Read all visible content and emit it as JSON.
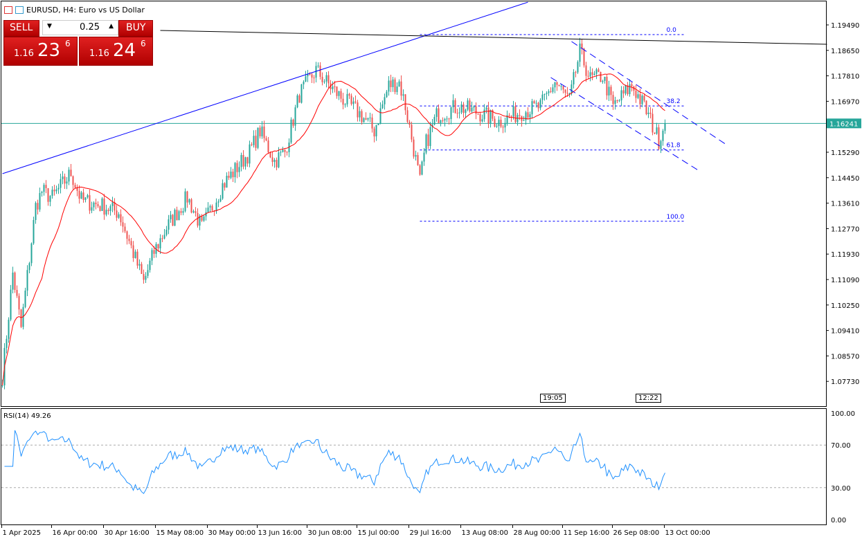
{
  "header": {
    "title": "EURUSD, H4:  Euro vs US Dollar"
  },
  "trade": {
    "sell": "SELL",
    "buy": "BUY",
    "volume": "0.25",
    "sell_prefix": "1.16",
    "sell_big": "23",
    "sell_sup": "6",
    "buy_prefix": "1.16",
    "buy_big": "24",
    "buy_sup": "6"
  },
  "markers": {
    "left": "19:05",
    "right": "12:22"
  },
  "chart_data": {
    "type": "candlestick",
    "symbol": "EURUSD",
    "timeframe": "H4",
    "price_ticks": [
      "1.19490",
      "1.18650",
      "1.17810",
      "1.16970",
      "1.15290",
      "1.14450",
      "1.13610",
      "1.12770",
      "1.11930",
      "1.11090",
      "1.10250",
      "1.09410",
      "1.08570",
      "1.07730"
    ],
    "ylim": [
      1.0739,
      1.2062
    ],
    "current_price": "1.16241",
    "bars": 320,
    "close_path": [
      [
        0,
        1.079
      ],
      [
        5,
        1.113
      ],
      [
        9,
        1.095
      ],
      [
        16,
        1.135
      ],
      [
        19,
        1.14
      ],
      [
        24,
        1.138
      ],
      [
        33,
        1.146
      ],
      [
        38,
        1.137
      ],
      [
        49,
        1.135
      ],
      [
        56,
        1.133
      ],
      [
        68,
        1.11
      ],
      [
        73,
        1.12
      ],
      [
        79,
        1.128
      ],
      [
        89,
        1.138
      ],
      [
        96,
        1.128
      ],
      [
        106,
        1.142
      ],
      [
        119,
        1.153
      ],
      [
        124,
        1.16
      ],
      [
        131,
        1.15
      ],
      [
        136,
        1.153
      ],
      [
        143,
        1.172
      ],
      [
        151,
        1.18
      ],
      [
        156,
        1.176
      ],
      [
        163,
        1.171
      ],
      [
        173,
        1.165
      ],
      [
        179,
        1.16
      ],
      [
        186,
        1.175
      ],
      [
        191,
        1.176
      ],
      [
        194,
        1.168
      ],
      [
        198,
        1.154
      ],
      [
        201,
        1.143
      ],
      [
        204,
        1.156
      ],
      [
        209,
        1.165
      ],
      [
        219,
        1.168
      ],
      [
        229,
        1.166
      ],
      [
        239,
        1.163
      ],
      [
        249,
        1.166
      ],
      [
        259,
        1.168
      ],
      [
        266,
        1.176
      ],
      [
        273,
        1.17
      ],
      [
        278,
        1.186
      ],
      [
        283,
        1.177
      ],
      [
        289,
        1.178
      ],
      [
        294,
        1.168
      ],
      [
        303,
        1.175
      ],
      [
        309,
        1.168
      ],
      [
        316,
        1.157
      ],
      [
        319,
        1.1624
      ]
    ],
    "time_labels": [
      {
        "label": "1 Apr 2025",
        "bar": 0
      },
      {
        "label": "16 Apr 00:00",
        "bar": 24
      },
      {
        "label": "30 Apr 16:00",
        "bar": 49
      },
      {
        "label": "15 May 08:00",
        "bar": 74
      },
      {
        "label": "30 May 00:00",
        "bar": 99
      },
      {
        "label": "13 Jun 16:00",
        "bar": 123
      },
      {
        "label": "30 Jun 08:00",
        "bar": 147
      },
      {
        "label": "15 Jul 00:00",
        "bar": 171
      },
      {
        "label": "29 Jul 16:00",
        "bar": 196
      },
      {
        "label": "13 Aug 08:00",
        "bar": 221
      },
      {
        "label": "28 Aug 00:00",
        "bar": 246
      },
      {
        "label": "11 Sep 16:00",
        "bar": 270
      },
      {
        "label": "26 Sep 08:00",
        "bar": 294
      },
      {
        "label": "13 Oct 00:00",
        "bar": 319
      }
    ],
    "fibonacci": {
      "start_bar": 201,
      "end_bar": 329,
      "price_0": 1.1917,
      "price_100": 1.13012,
      "levels": [
        {
          "label": "0.0",
          "ratio": 0
        },
        {
          "label": "38.2",
          "ratio": 0.382
        },
        {
          "label": "61.8",
          "ratio": 0.618
        },
        {
          "label": "100.0",
          "ratio": 1
        }
      ]
    },
    "trendlines": [
      {
        "name": "blue-trendline",
        "color": "#0000ff",
        "from": [
          0,
          1.14583
        ],
        "to": [
          253,
          1.2024
        ]
      },
      {
        "name": "black-trendline",
        "color": "#000000",
        "from": [
          76,
          1.19307
        ],
        "to": [
          397,
          1.18851
        ]
      }
    ],
    "channel": {
      "color": "#0000ff",
      "upper": {
        "from": [
          274,
          1.18942
        ],
        "to": [
          348,
          1.15564
        ]
      },
      "lower": {
        "from": [
          264,
          1.17755
        ],
        "to": [
          336,
          1.14651
        ]
      }
    },
    "ma": {
      "color": "#ff0000",
      "period": 20
    },
    "rsi": {
      "label": "RSI(14) 49.26",
      "period": 14,
      "ticks": [
        "100.00",
        "70.00",
        "30.00",
        "0.00"
      ],
      "levels": [
        100,
        70,
        30,
        0
      ],
      "color": "#1e90ff"
    },
    "colors": {
      "up": "#26a69a",
      "down": "#ef5350",
      "current_line": "#26a69a"
    }
  }
}
